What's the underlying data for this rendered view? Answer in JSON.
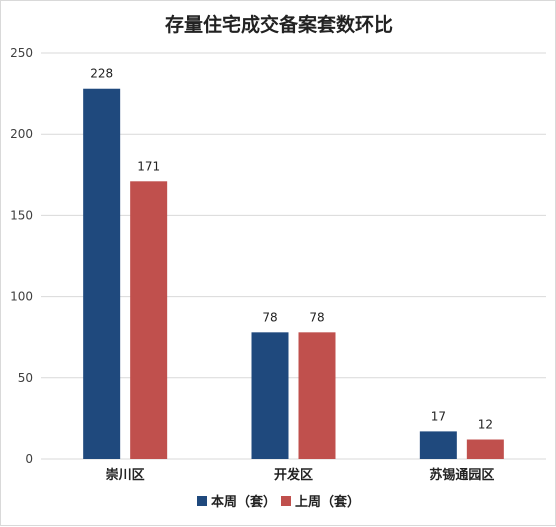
{
  "chart_data": {
    "type": "bar",
    "title": "存量住宅成交备案套数环比",
    "categories": [
      "崇川区",
      "开发区",
      "苏锡通园区"
    ],
    "series": [
      {
        "name": "本周（套）",
        "values": [
          228,
          78,
          17
        ],
        "color": "#1f497d"
      },
      {
        "name": "上周（套）",
        "values": [
          171,
          78,
          12
        ],
        "color": "#c0504d"
      }
    ],
    "ylim": [
      0,
      250
    ],
    "yticks": [
      0,
      50,
      100,
      150,
      200,
      250
    ],
    "grid": true,
    "legend": "bottom"
  }
}
